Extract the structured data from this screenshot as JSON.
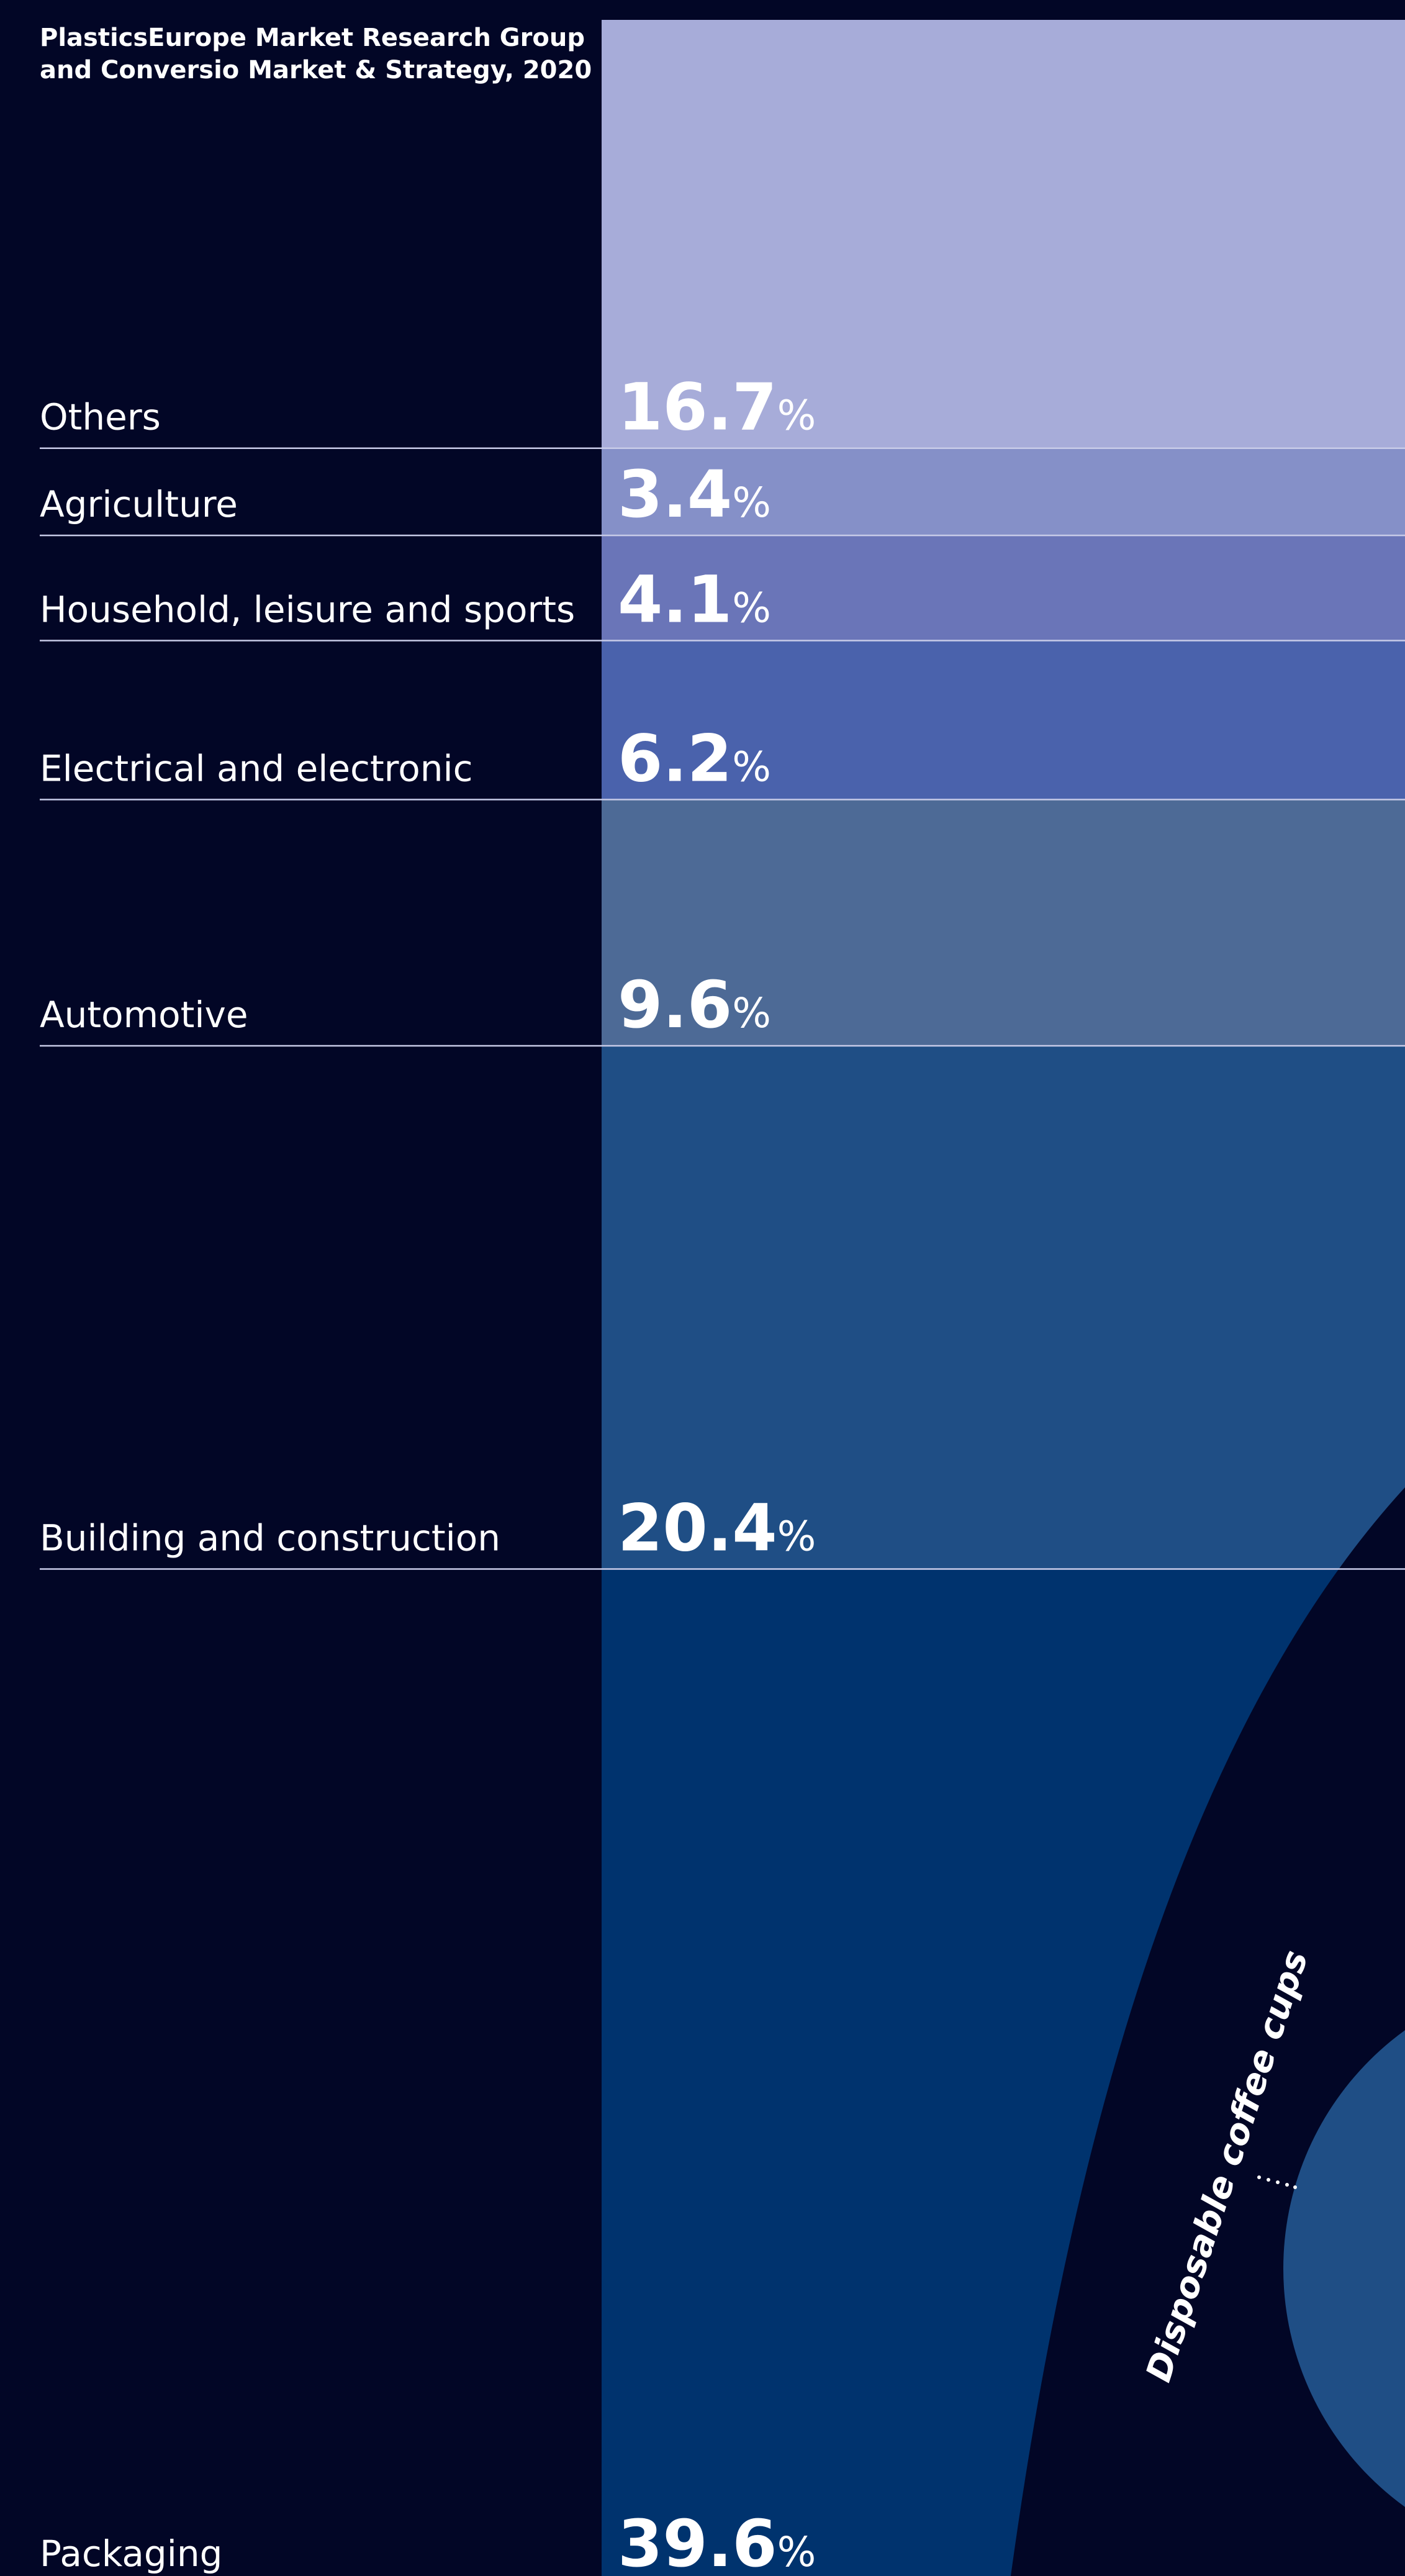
{
  "chart_data": {
    "type": "stacked-column",
    "source": [
      "PlasticsEurope Market Research Group",
      "and Conversio Market & Strategy, 2020"
    ],
    "categories": [
      "Others",
      "Agriculture",
      "Household, leisure and sports",
      "Electrical and electronic",
      "Automotive",
      "Building and construction",
      "Packaging"
    ],
    "values": [
      16.7,
      3.4,
      4.1,
      6.2,
      9.6,
      20.4,
      39.6
    ],
    "value_labels": [
      "16.7%",
      "3.4%",
      "4.1%",
      "6.2%",
      "9.6%",
      "20.4%",
      "39.6%"
    ],
    "colors": [
      "#a7acd9",
      "#8590c8",
      "#6a75b8",
      "#4a62ac",
      "#4d6a96",
      "#1f4e85",
      "#00336e"
    ],
    "annotation": "Disposable coffee cups"
  }
}
